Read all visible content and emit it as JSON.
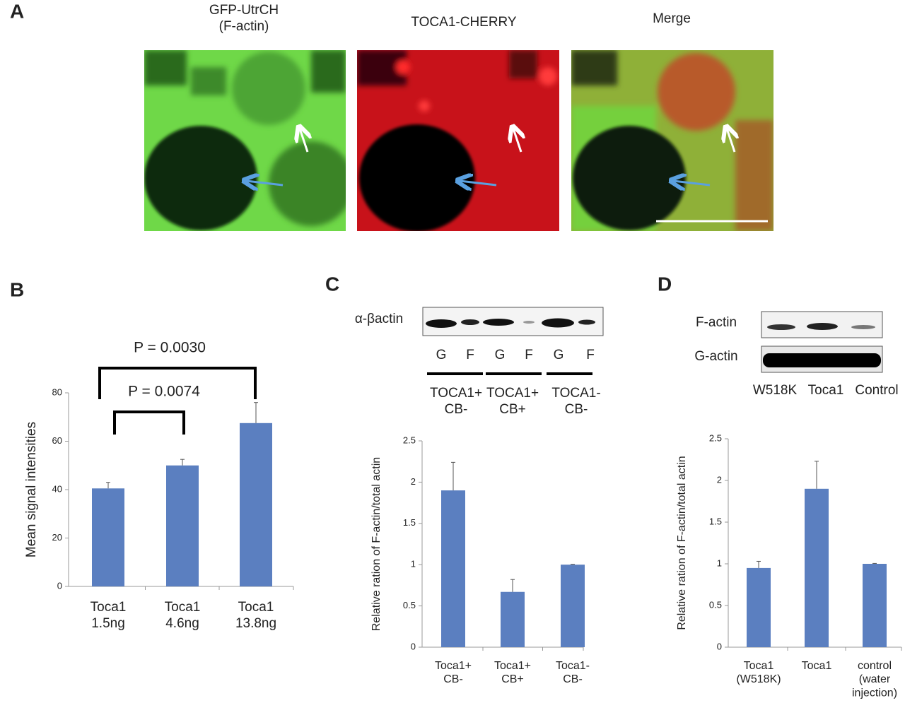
{
  "panels": [
    "A",
    "B",
    "C",
    "D"
  ],
  "micrographs": {
    "titles": [
      "GFP-UtrCH\n(F-actin)",
      "TOCA1-CHERRY",
      "Merge"
    ]
  },
  "blot_c": {
    "row_label": "α-βactin",
    "lanes": [
      "G",
      "F",
      "G",
      "F",
      "G",
      "F"
    ],
    "groups": [
      "TOCA1+\nCB-",
      "TOCA1+\nCB+",
      "TOCA1-\nCB-"
    ]
  },
  "blot_d": {
    "row_labels": [
      "F-actin",
      "G-actin"
    ],
    "lanes": [
      "W518K",
      "Toca1",
      "Control"
    ]
  },
  "chart_data": [
    {
      "type": "bar",
      "y_label": "Mean signal intensities",
      "categories": [
        "Toca1\n1.5ng",
        "Toca1\n4.6ng",
        "Toca1\n13.8ng"
      ],
      "values": [
        40.5,
        50,
        67.5
      ],
      "errors": [
        2.5,
        2.5,
        8.5
      ],
      "color": "#5b7fc0",
      "ylim": [
        0,
        80
      ],
      "yticks": [
        0,
        20,
        40,
        60,
        80
      ],
      "annotations": [
        "P = 0.0030",
        "P = 0.0074"
      ]
    },
    {
      "type": "bar",
      "y_label": "Relative ration of F-actin/total actin",
      "categories": [
        "Toca1+\nCB-",
        "Toca1+\nCB+",
        "Toca1-\nCB-"
      ],
      "values": [
        1.9,
        0.67,
        1.0
      ],
      "errors": [
        0.34,
        0.15,
        0.005
      ],
      "color": "#5b7fc0",
      "ylim": [
        0,
        2.5
      ],
      "yticks": [
        0,
        0.5,
        1,
        1.5,
        2,
        2.5
      ]
    },
    {
      "type": "bar",
      "y_label": "Relative ration of F-actin/total actin",
      "categories": [
        "Toca1\n(W518K)",
        "Toca1",
        "control\n(water\ninjection)"
      ],
      "values": [
        0.95,
        1.9,
        1.0
      ],
      "errors": [
        0.08,
        0.33,
        0.005
      ],
      "color": "#5b7fc0",
      "ylim": [
        0,
        2.5
      ],
      "yticks": [
        0,
        0.5,
        1,
        1.5,
        2,
        2.5
      ]
    }
  ]
}
